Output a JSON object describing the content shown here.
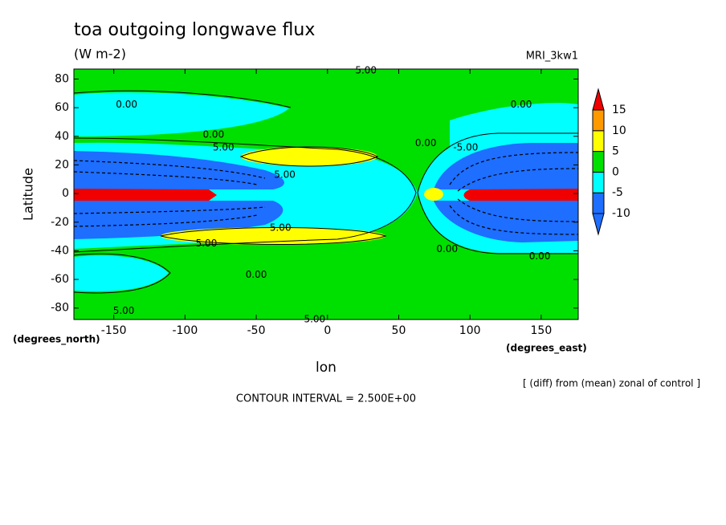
{
  "chart_data": {
    "type": "contour",
    "title": "toa outgoing longwave flux",
    "subtitle": "(W m-2)",
    "model": "MRI_3kw1",
    "y_label": "Latitude",
    "x_label": "lon",
    "y_units": "(degrees_north)",
    "x_units": "(degrees_east)",
    "note": "[ (diff) from (mean) zonal of control ]",
    "contour_interval": "CONTOUR INTERVAL = 2.500E+00",
    "xlim": [
      -178,
      176
    ],
    "ylim": [
      -88,
      87
    ],
    "xticks": [
      -150,
      -100,
      -50,
      0,
      50,
      100,
      150
    ],
    "yticks": [
      -80,
      -60,
      -40,
      -20,
      0,
      20,
      40,
      60,
      80
    ],
    "colorbar": {
      "levels": [
        -10,
        -5,
        0,
        5,
        10,
        15
      ],
      "colors": [
        "#1e6eff",
        "#1e6eff",
        "#00ffff",
        "#00e000",
        "#ffff00",
        "#ff9900",
        "#f00000"
      ]
    },
    "contour_labels": [
      {
        "text": "0.00",
        "lon": -141,
        "lat": 62
      },
      {
        "text": "0.00",
        "lon": -80,
        "lat": 41
      },
      {
        "text": "5.00",
        "lon": -73,
        "lat": 32
      },
      {
        "text": "5.00",
        "lon": -30,
        "lat": 13
      },
      {
        "text": "0.00",
        "lon": 69,
        "lat": 35
      },
      {
        "text": "-5.00",
        "lon": 97,
        "lat": 32
      },
      {
        "text": "0.00",
        "lon": 136,
        "lat": 62
      },
      {
        "text": "5.00",
        "lon": 27,
        "lat": 86
      },
      {
        "text": "0.00",
        "lon": 84,
        "lat": -39
      },
      {
        "text": "0.00",
        "lon": 149,
        "lat": -44
      },
      {
        "text": "5.00",
        "lon": -85,
        "lat": -35
      },
      {
        "text": "5.00",
        "lon": -33,
        "lat": -24
      },
      {
        "text": "0.00",
        "lon": -50,
        "lat": -57
      },
      {
        "text": "5.00",
        "lon": -143,
        "lat": -82
      },
      {
        "text": "5.00",
        "lon": -9,
        "lat": -88
      }
    ]
  }
}
